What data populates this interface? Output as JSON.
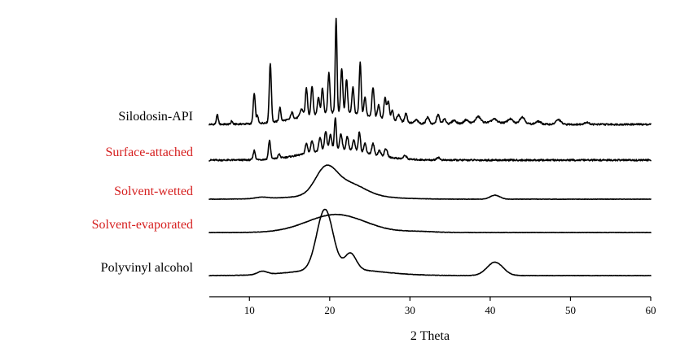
{
  "chart_data": {
    "type": "line",
    "title": "",
    "xlabel": "2 Theta",
    "ylabel": "",
    "xlim": [
      5,
      60
    ],
    "x_ticks": [
      10,
      20,
      30,
      40,
      50,
      60
    ],
    "grid": false,
    "legend": "none",
    "series": [
      {
        "name": "Silodosin-API",
        "color": "#000000",
        "baseline": [
          0.0,
          0.0
        ],
        "peaks": [
          [
            6.0,
            0.14,
            0.12
          ],
          [
            7.8,
            0.05,
            0.1
          ],
          [
            10.6,
            0.45,
            0.13
          ],
          [
            11.0,
            0.12,
            0.1
          ],
          [
            12.6,
            0.88,
            0.13
          ],
          [
            13.8,
            0.2,
            0.12
          ],
          [
            15.3,
            0.1,
            0.15
          ],
          [
            16.5,
            0.12,
            0.2
          ],
          [
            17.1,
            0.42,
            0.13
          ],
          [
            17.8,
            0.44,
            0.13
          ],
          [
            18.6,
            0.26,
            0.13
          ],
          [
            19.1,
            0.38,
            0.13
          ],
          [
            19.9,
            0.6,
            0.13
          ],
          [
            20.8,
            1.4,
            0.11
          ],
          [
            21.5,
            0.66,
            0.13
          ],
          [
            22.1,
            0.5,
            0.13
          ],
          [
            22.9,
            0.4,
            0.13
          ],
          [
            23.8,
            0.78,
            0.12
          ],
          [
            24.4,
            0.28,
            0.13
          ],
          [
            25.4,
            0.44,
            0.14
          ],
          [
            26.1,
            0.2,
            0.14
          ],
          [
            26.9,
            0.32,
            0.14
          ],
          [
            27.3,
            0.28,
            0.14
          ],
          [
            27.8,
            0.16,
            0.14
          ],
          [
            28.6,
            0.1,
            0.2
          ],
          [
            29.5,
            0.14,
            0.15
          ],
          [
            30.8,
            0.05,
            0.2
          ],
          [
            32.2,
            0.1,
            0.2
          ],
          [
            33.5,
            0.14,
            0.18
          ],
          [
            34.3,
            0.07,
            0.2
          ],
          [
            35.5,
            0.05,
            0.25
          ],
          [
            37.0,
            0.05,
            0.25
          ],
          [
            38.5,
            0.09,
            0.3
          ],
          [
            40.5,
            0.05,
            0.3
          ],
          [
            42.5,
            0.06,
            0.3
          ],
          [
            44.0,
            0.1,
            0.3
          ],
          [
            46.0,
            0.04,
            0.3
          ],
          [
            48.5,
            0.07,
            0.3
          ],
          [
            52.0,
            0.03,
            0.3
          ]
        ],
        "humps": [
          [
            21.0,
            0.18,
            4.5
          ],
          [
            40.0,
            0.03,
            3.0
          ]
        ]
      },
      {
        "name": "Surface-attached",
        "color": "#d62020",
        "baseline": [
          0.0,
          0.0
        ],
        "peaks": [
          [
            10.6,
            0.14,
            0.13
          ],
          [
            12.5,
            0.28,
            0.13
          ],
          [
            13.7,
            0.06,
            0.13
          ],
          [
            17.1,
            0.15,
            0.15
          ],
          [
            17.8,
            0.18,
            0.15
          ],
          [
            18.8,
            0.2,
            0.15
          ],
          [
            19.5,
            0.28,
            0.15
          ],
          [
            20.1,
            0.22,
            0.15
          ],
          [
            20.7,
            0.48,
            0.12
          ],
          [
            21.4,
            0.24,
            0.15
          ],
          [
            22.2,
            0.2,
            0.15
          ],
          [
            23.0,
            0.16,
            0.15
          ],
          [
            23.7,
            0.3,
            0.13
          ],
          [
            24.4,
            0.14,
            0.15
          ],
          [
            25.4,
            0.16,
            0.15
          ],
          [
            26.2,
            0.08,
            0.15
          ],
          [
            27.0,
            0.12,
            0.18
          ],
          [
            29.4,
            0.05,
            0.2
          ],
          [
            33.5,
            0.04,
            0.2
          ]
        ],
        "humps": [
          [
            21.0,
            0.16,
            4.0
          ]
        ]
      },
      {
        "name": "Solvent-wetted",
        "color": "#d62020",
        "baseline": [
          0.0,
          0.0
        ],
        "peaks": [
          [
            40.6,
            0.06,
            0.6
          ],
          [
            11.5,
            0.02,
            0.8
          ]
        ],
        "humps": [
          [
            19.5,
            0.38,
            1.3
          ],
          [
            22.3,
            0.18,
            2.0
          ],
          [
            21.0,
            0.06,
            5.0
          ]
        ]
      },
      {
        "name": "Solvent-evaporated",
        "color": "#d62020",
        "baseline": [
          0.0,
          0.0
        ],
        "peaks": [],
        "humps": [
          [
            20.8,
            0.27,
            3.6
          ],
          [
            31.0,
            0.015,
            2.0
          ]
        ]
      },
      {
        "name": "Polyvinyl alcohol",
        "color": "#000000",
        "baseline": [
          0.0,
          0.0
        ],
        "peaks": [
          [
            11.6,
            0.05,
            0.6
          ],
          [
            22.6,
            0.24,
            0.7
          ]
        ],
        "humps": [
          [
            19.4,
            0.9,
            1.0
          ],
          [
            40.6,
            0.2,
            1.0
          ],
          [
            21.0,
            0.1,
            5.0
          ]
        ]
      }
    ]
  }
}
